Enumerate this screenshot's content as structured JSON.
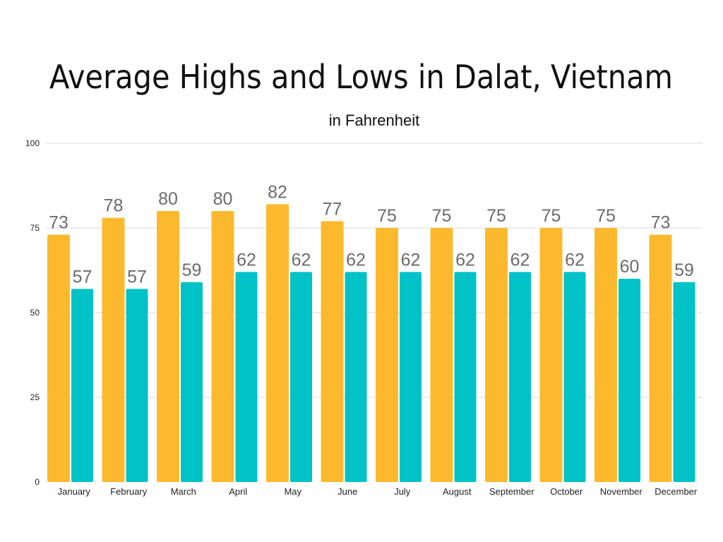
{
  "chart_data": {
    "type": "bar",
    "title": "Average Highs and Lows in Dalat, Vietnam",
    "subtitle": "in Fahrenheit",
    "xlabel": "",
    "ylabel": "",
    "ylim": [
      0,
      100
    ],
    "yticks": [
      0,
      25,
      50,
      75,
      100
    ],
    "grid": true,
    "legend": "none",
    "categories": [
      "January",
      "February",
      "March",
      "April",
      "May",
      "June",
      "July",
      "August",
      "September",
      "October",
      "November",
      "December"
    ],
    "series": [
      {
        "values": [
          73,
          78,
          80,
          80,
          82,
          77,
          75,
          75,
          75,
          75,
          75,
          73
        ],
        "color": "#FDB92E"
      },
      {
        "values": [
          57,
          57,
          59,
          62,
          62,
          62,
          62,
          62,
          62,
          62,
          60,
          59
        ],
        "color": "#00C2C7"
      }
    ],
    "data_labels": true,
    "data_label_color": "#6b6b6b"
  }
}
